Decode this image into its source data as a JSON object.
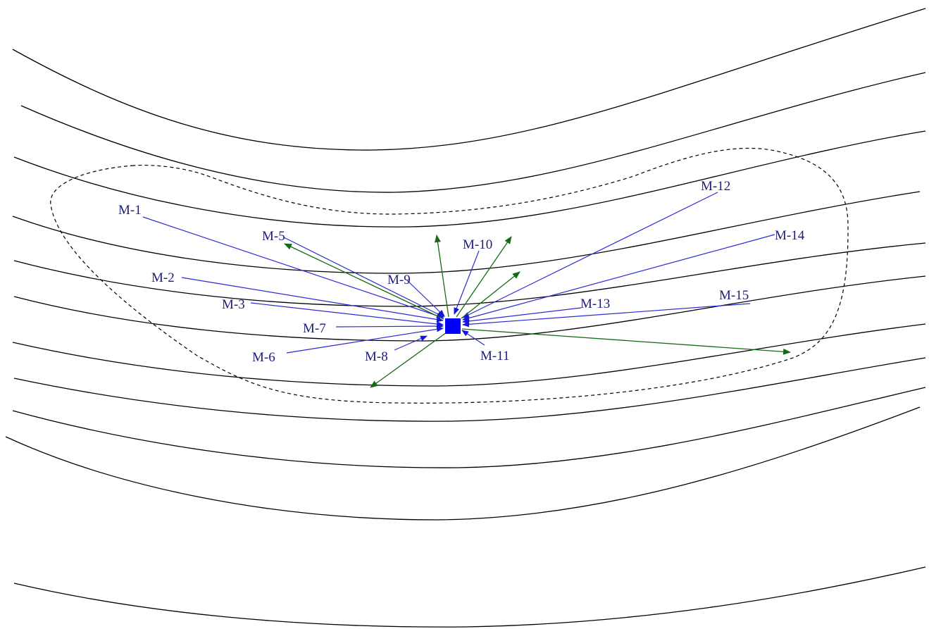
{
  "diagram": {
    "colors": {
      "contour": "#000000",
      "boundary": "#000000",
      "inbound_arrow": "#2b2bd6",
      "outbound_arrow": "#156a15",
      "center_marker": "#0000ff",
      "label": "#1d1d7a"
    },
    "center_marker": "square",
    "labels": {
      "m1": "M-1",
      "m2": "M-2",
      "m3": "M-3",
      "m5": "M-5",
      "m6": "M-6",
      "m7": "M-7",
      "m8": "M-8",
      "m9": "M-9",
      "m10": "M-10",
      "m11": "M-11",
      "m12": "M-12",
      "m13": "M-13",
      "m14": "M-14",
      "m15": "M-15"
    }
  }
}
